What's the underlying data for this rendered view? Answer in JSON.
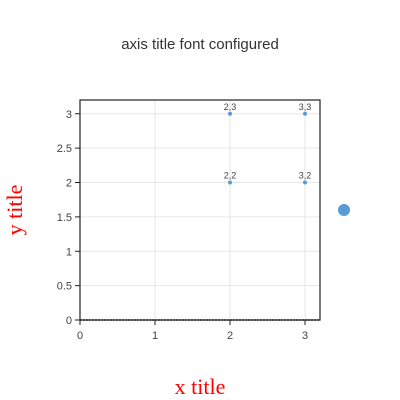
{
  "chart_data": {
    "type": "scatter",
    "title": "axis title font configured",
    "xlabel": "x title",
    "ylabel": "y title",
    "axis_title_color": "#ff0000",
    "marker_color": "#5b9bd5",
    "xlim": [
      0,
      3.2
    ],
    "ylim": [
      0,
      3.2
    ],
    "xticks": [
      "0",
      "1",
      "2",
      "3"
    ],
    "yticks": [
      "0",
      "0.5",
      "1",
      "1.5",
      "2",
      "2.5",
      "3"
    ],
    "points": [
      {
        "x": 2,
        "y": 3,
        "label": "2,3"
      },
      {
        "x": 3,
        "y": 3,
        "label": "3,3"
      },
      {
        "x": 2,
        "y": 2,
        "label": "2,2"
      },
      {
        "x": 3,
        "y": 2,
        "label": "3,2"
      }
    ],
    "legend": {
      "placement": "right",
      "marker": "circle"
    },
    "grid": true
  }
}
